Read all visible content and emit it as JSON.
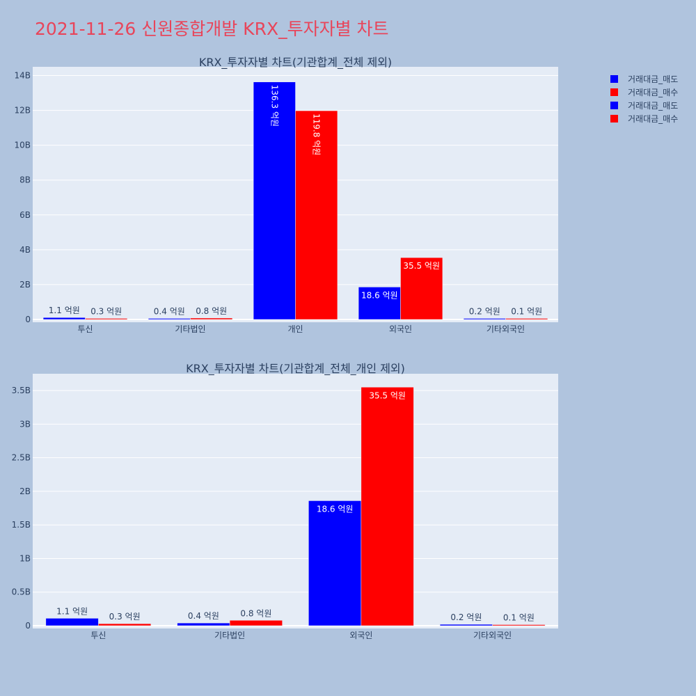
{
  "page": {
    "title": "2021-11-26 신원종합개발 KRX_투자자별 차트",
    "background": "#b0c4de",
    "plot_background": "#e5ecf6",
    "title_color": "#e8455a"
  },
  "legend": {
    "placement": "top-right",
    "items": [
      {
        "label": "거래대금_매도",
        "color": "#0000ff"
      },
      {
        "label": "거래대금_매수",
        "color": "#ff0000"
      },
      {
        "label": "거래대금_매도",
        "color": "#0000ff"
      },
      {
        "label": "거래대금_매수",
        "color": "#ff0000"
      }
    ]
  },
  "chart_data": [
    {
      "type": "bar",
      "title": "KRX_투자자별 차트(기관합계_전체 제외)",
      "categories": [
        "투신",
        "기타법인",
        "개인",
        "외국인",
        "기타외국인"
      ],
      "ylim": [
        0,
        14500000000
      ],
      "yticks": [
        0,
        2000000000,
        4000000000,
        6000000000,
        8000000000,
        10000000000,
        12000000000,
        14000000000
      ],
      "ytick_labels": [
        "0",
        "2B",
        "4B",
        "6B",
        "8B",
        "10B",
        "12B",
        "14B"
      ],
      "grid": true,
      "series": [
        {
          "name": "거래대금_매도",
          "color": "#0000ff",
          "values": [
            110000000,
            40000000,
            13630000000,
            1860000000,
            20000000
          ],
          "labels": [
            "1.1 억원",
            "0.4 억원",
            "136.3 억원",
            "18.6 억원",
            "0.2 억원"
          ]
        },
        {
          "name": "거래대금_매수",
          "color": "#ff0000",
          "values": [
            30000000,
            80000000,
            11980000000,
            3550000000,
            10000000
          ],
          "labels": [
            "0.3 억원",
            "0.8 억원",
            "119.8 억원",
            "35.5 억원",
            "0.1 억원"
          ]
        }
      ]
    },
    {
      "type": "bar",
      "title": "KRX_투자자별 차트(기관합계_전체_개인 제외)",
      "categories": [
        "투신",
        "기타법인",
        "외국인",
        "기타외국인"
      ],
      "ylim": [
        0,
        3750000000
      ],
      "yticks": [
        0,
        500000000,
        1000000000,
        1500000000,
        2000000000,
        2500000000,
        3000000000,
        3500000000
      ],
      "ytick_labels": [
        "0",
        "0.5B",
        "1B",
        "1.5B",
        "2B",
        "2.5B",
        "3B",
        "3.5B"
      ],
      "grid": true,
      "series": [
        {
          "name": "거래대금_매도",
          "color": "#0000ff",
          "values": [
            110000000,
            40000000,
            1860000000,
            20000000
          ],
          "labels": [
            "1.1 억원",
            "0.4 억원",
            "18.6 억원",
            "0.2 억원"
          ]
        },
        {
          "name": "거래대금_매수",
          "color": "#ff0000",
          "values": [
            30000000,
            80000000,
            3550000000,
            10000000
          ],
          "labels": [
            "0.3 억원",
            "0.8 억원",
            "35.5 억원",
            "0.1 억원"
          ]
        }
      ]
    }
  ]
}
